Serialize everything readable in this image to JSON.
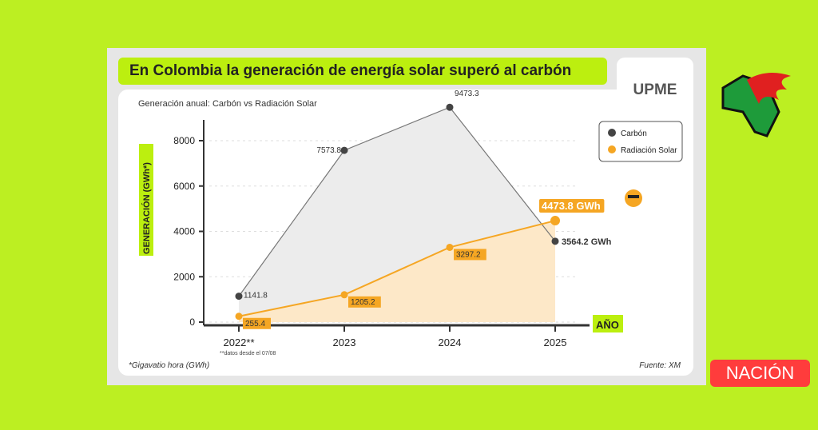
{
  "header": {
    "title": "En Colombia la generación de energía solar superó al carbón",
    "logo_text": "UPME"
  },
  "footer": {
    "note": "*Gigavatio hora (GWh)",
    "source": "Fuente: XM",
    "date_note": "**datos desde el 07/08"
  },
  "brand": {
    "badge": "NACIÓN"
  },
  "colors": {
    "carbon": "#555555",
    "solar": "#f5a623",
    "accent": "#bcef0f"
  },
  "chart_data": {
    "type": "line",
    "title": "Generación anual: Carbón vs Radiación Solar",
    "xlabel": "AÑO",
    "ylabel": "GENERACIÓN (GWh*)",
    "categories": [
      "2022**",
      "2023",
      "2024",
      "2025"
    ],
    "yticks": [
      "0",
      "2000",
      "4000",
      "6000",
      "8000"
    ],
    "ylim": [
      0,
      8000
    ],
    "series": [
      {
        "name": "Carbón",
        "values": [
          1141.8,
          7573.8,
          9473.3,
          3564.2
        ],
        "labels": [
          "1141.8",
          "7573.8",
          "9473.3",
          "3564.2 GWh"
        ]
      },
      {
        "name": "Radiación Solar",
        "values": [
          255.4,
          1205.2,
          3297.2,
          4473.8
        ],
        "labels": [
          "255.4",
          "1205.2",
          "3297.2",
          "4473.8 GWh"
        ]
      }
    ],
    "legend": "top-right"
  }
}
